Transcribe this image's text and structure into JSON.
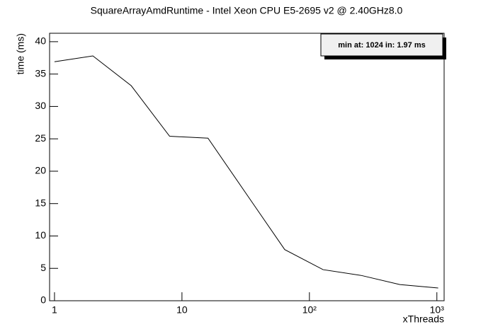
{
  "chart_data": {
    "type": "line",
    "title": "SquareArrayAmdRuntime - Intel Xeon CPU E5-2695 v2 @ 2.40GHz8.0",
    "x_label": "xThreads",
    "y_label": "time (ms)",
    "annotation": "min at: 1024 in: 1.97 ms",
    "x": [
      1,
      2,
      4,
      8,
      16,
      32,
      64,
      128,
      256,
      512,
      1024
    ],
    "series": [
      {
        "color": "#000000",
        "values": [
          36.9,
          37.8,
          33.2,
          25.4,
          25.1,
          16.5,
          7.9,
          4.8,
          3.9,
          2.5,
          1.97
        ]
      }
    ],
    "xscale": "log",
    "xlim": [
      0.915,
      1140
    ],
    "ylim": [
      0,
      41.3
    ],
    "xticks": [
      1,
      10,
      {
        "value": 100,
        "label": "10²"
      },
      {
        "value": 1000,
        "label": "10³"
      }
    ],
    "yticks": [
      0,
      5,
      10,
      15,
      20,
      25,
      30,
      35,
      40
    ]
  }
}
